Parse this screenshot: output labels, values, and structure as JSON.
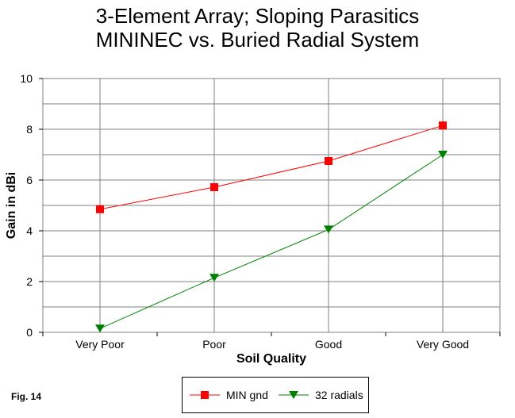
{
  "title_line1": "3-Element Array; Sloping Parasitics",
  "title_line2": "MININEC vs. Buried Radial System",
  "figure_label": "Fig. 14",
  "chart_data": {
    "type": "line",
    "title": "3-Element Array; Sloping Parasitics MININEC vs. Buried Radial System",
    "xlabel": "Soil Quality",
    "ylabel": "Gain in dBi",
    "categories": [
      "Very Poor",
      "Poor",
      "Good",
      "Very Good"
    ],
    "ylim": [
      0,
      10
    ],
    "yticks": [
      0,
      2,
      4,
      6,
      8,
      10
    ],
    "grid": true,
    "legend_position": "bottom",
    "series": [
      {
        "name": "MIN gnd",
        "values": [
          4.85,
          5.72,
          6.75,
          8.15
        ],
        "color": "#ff0000",
        "marker": "square"
      },
      {
        "name": "32 radials",
        "values": [
          0.15,
          2.15,
          4.05,
          7.0
        ],
        "color": "#008000",
        "marker": "triangle-down"
      }
    ]
  }
}
